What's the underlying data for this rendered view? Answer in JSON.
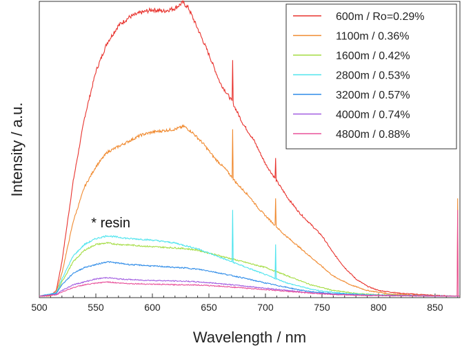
{
  "chart_data": {
    "type": "line",
    "title": "",
    "xlabel": "Wavelength / nm",
    "ylabel": "Intensity / a.u.",
    "xlim": [
      500,
      872
    ],
    "ylim": [
      0,
      1
    ],
    "xticks": [
      500,
      550,
      600,
      650,
      700,
      750,
      800,
      850
    ],
    "yticks": [],
    "grid": false,
    "legend_position": "top-right",
    "annotation": {
      "text": "* resin",
      "x": 563,
      "y": 0.22
    },
    "series": [
      {
        "name": "600m / Ro=0.29%",
        "color": "#e8322d",
        "points": [
          [
            500,
            0
          ],
          [
            510,
            0.002
          ],
          [
            515,
            0.02
          ],
          [
            520,
            0.12
          ],
          [
            530,
            0.4
          ],
          [
            540,
            0.62
          ],
          [
            550,
            0.78
          ],
          [
            560,
            0.88
          ],
          [
            570,
            0.94
          ],
          [
            580,
            0.97
          ],
          [
            590,
            0.985
          ],
          [
            600,
            0.995
          ],
          [
            610,
            0.99
          ],
          [
            620,
            1.0
          ],
          [
            627,
            1.02
          ],
          [
            632,
            1.0
          ],
          [
            640,
            0.93
          ],
          [
            650,
            0.84
          ],
          [
            660,
            0.74
          ],
          [
            670,
            0.68
          ],
          [
            680,
            0.6
          ],
          [
            690,
            0.54
          ],
          [
            700,
            0.46
          ],
          [
            710,
            0.4
          ],
          [
            720,
            0.34
          ],
          [
            730,
            0.29
          ],
          [
            740,
            0.25
          ],
          [
            750,
            0.21
          ],
          [
            760,
            0.15
          ],
          [
            770,
            0.1
          ],
          [
            780,
            0.06
          ],
          [
            790,
            0.035
          ],
          [
            800,
            0.02
          ],
          [
            820,
            0.01
          ],
          [
            850,
            0.003
          ],
          [
            872,
            0
          ]
        ],
        "spikes": [
          [
            671,
            0.82
          ],
          [
            709,
            0.48
          ]
        ]
      },
      {
        "name": "1100m / 0.36%",
        "color": "#f0892e",
        "points": [
          [
            500,
            0
          ],
          [
            510,
            0.002
          ],
          [
            515,
            0.015
          ],
          [
            520,
            0.08
          ],
          [
            530,
            0.26
          ],
          [
            540,
            0.38
          ],
          [
            550,
            0.45
          ],
          [
            560,
            0.5
          ],
          [
            570,
            0.52
          ],
          [
            580,
            0.54
          ],
          [
            590,
            0.56
          ],
          [
            600,
            0.57
          ],
          [
            610,
            0.575
          ],
          [
            620,
            0.58
          ],
          [
            628,
            0.59
          ],
          [
            635,
            0.57
          ],
          [
            645,
            0.53
          ],
          [
            655,
            0.48
          ],
          [
            665,
            0.44
          ],
          [
            675,
            0.39
          ],
          [
            685,
            0.35
          ],
          [
            695,
            0.3
          ],
          [
            705,
            0.26
          ],
          [
            715,
            0.22
          ],
          [
            730,
            0.17
          ],
          [
            745,
            0.12
          ],
          [
            760,
            0.07
          ],
          [
            775,
            0.04
          ],
          [
            790,
            0.02
          ],
          [
            810,
            0.008
          ],
          [
            840,
            0.002
          ],
          [
            872,
            0
          ]
        ],
        "spikes": [
          [
            671,
            0.58
          ],
          [
            709,
            0.34
          ],
          [
            870,
            0.34
          ]
        ]
      },
      {
        "name": "1600m / 0.42%",
        "color": "#a3dc42",
        "points": [
          [
            500,
            0
          ],
          [
            515,
            0.01
          ],
          [
            520,
            0.05
          ],
          [
            530,
            0.12
          ],
          [
            540,
            0.16
          ],
          [
            550,
            0.18
          ],
          [
            560,
            0.185
          ],
          [
            570,
            0.18
          ],
          [
            580,
            0.178
          ],
          [
            590,
            0.175
          ],
          [
            600,
            0.172
          ],
          [
            610,
            0.17
          ],
          [
            620,
            0.168
          ],
          [
            630,
            0.165
          ],
          [
            640,
            0.16
          ],
          [
            650,
            0.15
          ],
          [
            660,
            0.14
          ],
          [
            670,
            0.13
          ],
          [
            680,
            0.12
          ],
          [
            690,
            0.11
          ],
          [
            700,
            0.1
          ],
          [
            710,
            0.085
          ],
          [
            720,
            0.07
          ],
          [
            730,
            0.055
          ],
          [
            740,
            0.04
          ],
          [
            750,
            0.03
          ],
          [
            760,
            0.02
          ],
          [
            780,
            0.01
          ],
          [
            800,
            0.005
          ],
          [
            840,
            0.001
          ],
          [
            872,
            0
          ]
        ],
        "spikes": []
      },
      {
        "name": "2800m / 0.53%",
        "color": "#4ee4ee",
        "points": [
          [
            500,
            0
          ],
          [
            515,
            0.012
          ],
          [
            520,
            0.06
          ],
          [
            530,
            0.14
          ],
          [
            540,
            0.18
          ],
          [
            550,
            0.2
          ],
          [
            560,
            0.21
          ],
          [
            570,
            0.205
          ],
          [
            580,
            0.2
          ],
          [
            590,
            0.198
          ],
          [
            600,
            0.195
          ],
          [
            610,
            0.19
          ],
          [
            620,
            0.185
          ],
          [
            630,
            0.175
          ],
          [
            640,
            0.165
          ],
          [
            650,
            0.15
          ],
          [
            660,
            0.135
          ],
          [
            670,
            0.12
          ],
          [
            680,
            0.105
          ],
          [
            690,
            0.09
          ],
          [
            700,
            0.075
          ],
          [
            710,
            0.06
          ],
          [
            720,
            0.045
          ],
          [
            730,
            0.035
          ],
          [
            740,
            0.025
          ],
          [
            750,
            0.018
          ],
          [
            770,
            0.01
          ],
          [
            800,
            0.004
          ],
          [
            872,
            0
          ]
        ],
        "spikes": [
          [
            671,
            0.3
          ],
          [
            709,
            0.18
          ]
        ]
      },
      {
        "name": "3200m / 0.57%",
        "color": "#2f8ce8",
        "points": [
          [
            500,
            0
          ],
          [
            515,
            0.01
          ],
          [
            520,
            0.04
          ],
          [
            530,
            0.08
          ],
          [
            540,
            0.1
          ],
          [
            550,
            0.11
          ],
          [
            560,
            0.12
          ],
          [
            570,
            0.115
          ],
          [
            580,
            0.11
          ],
          [
            590,
            0.108
          ],
          [
            600,
            0.105
          ],
          [
            610,
            0.103
          ],
          [
            620,
            0.1
          ],
          [
            630,
            0.098
          ],
          [
            640,
            0.094
          ],
          [
            650,
            0.088
          ],
          [
            660,
            0.08
          ],
          [
            670,
            0.072
          ],
          [
            680,
            0.064
          ],
          [
            690,
            0.055
          ],
          [
            700,
            0.046
          ],
          [
            710,
            0.038
          ],
          [
            720,
            0.03
          ],
          [
            730,
            0.022
          ],
          [
            740,
            0.016
          ],
          [
            760,
            0.009
          ],
          [
            790,
            0.004
          ],
          [
            872,
            0
          ]
        ],
        "spikes": []
      },
      {
        "name": "4000m / 0.74%",
        "color": "#a15ce0",
        "points": [
          [
            500,
            0
          ],
          [
            515,
            0.006
          ],
          [
            520,
            0.02
          ],
          [
            530,
            0.04
          ],
          [
            540,
            0.05
          ],
          [
            550,
            0.06
          ],
          [
            560,
            0.065
          ],
          [
            570,
            0.06
          ],
          [
            580,
            0.058
          ],
          [
            590,
            0.056
          ],
          [
            600,
            0.055
          ],
          [
            610,
            0.054
          ],
          [
            620,
            0.053
          ],
          [
            630,
            0.052
          ],
          [
            640,
            0.05
          ],
          [
            650,
            0.047
          ],
          [
            660,
            0.044
          ],
          [
            670,
            0.04
          ],
          [
            680,
            0.036
          ],
          [
            690,
            0.032
          ],
          [
            700,
            0.028
          ],
          [
            710,
            0.024
          ],
          [
            720,
            0.02
          ],
          [
            730,
            0.016
          ],
          [
            740,
            0.012
          ],
          [
            760,
            0.007
          ],
          [
            790,
            0.003
          ],
          [
            872,
            0
          ]
        ],
        "spikes": []
      },
      {
        "name": "4800m / 0.88%",
        "color": "#e8509a",
        "points": [
          [
            500,
            0
          ],
          [
            515,
            0.005
          ],
          [
            520,
            0.015
          ],
          [
            530,
            0.03
          ],
          [
            540,
            0.04
          ],
          [
            550,
            0.045
          ],
          [
            560,
            0.05
          ],
          [
            570,
            0.046
          ],
          [
            580,
            0.044
          ],
          [
            590,
            0.043
          ],
          [
            600,
            0.042
          ],
          [
            610,
            0.041
          ],
          [
            620,
            0.04
          ],
          [
            630,
            0.04
          ],
          [
            640,
            0.039
          ],
          [
            650,
            0.037
          ],
          [
            660,
            0.035
          ],
          [
            670,
            0.032
          ],
          [
            680,
            0.029
          ],
          [
            690,
            0.026
          ],
          [
            700,
            0.023
          ],
          [
            710,
            0.02
          ],
          [
            720,
            0.017
          ],
          [
            730,
            0.014
          ],
          [
            740,
            0.011
          ],
          [
            760,
            0.006
          ],
          [
            790,
            0.003
          ],
          [
            872,
            0
          ]
        ],
        "spikes": [
          [
            870,
            0.3
          ]
        ]
      }
    ]
  }
}
